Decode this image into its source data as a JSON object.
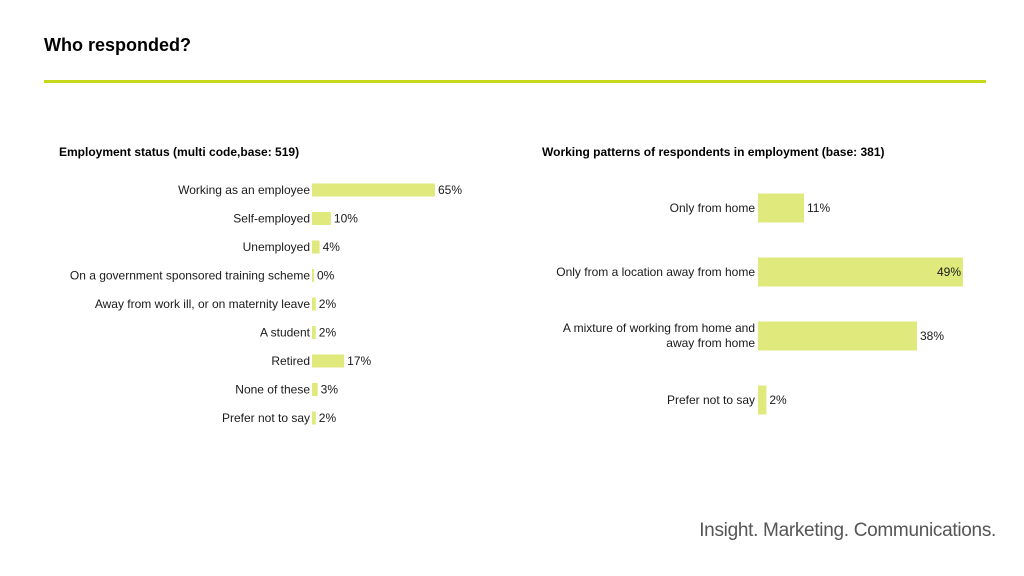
{
  "page": {
    "title": "Who responded?",
    "footer_logo": "Insight. Marketing. Communications."
  },
  "colors": {
    "bar": "#dfe97c",
    "rule": "#c5d81a",
    "text": "#1a1a1a"
  },
  "chart_data": [
    {
      "type": "bar",
      "orientation": "horizontal",
      "title": "Employment status (multi code,base: 519)",
      "categories": [
        "Working as an employee",
        "Self-employed",
        "Unemployed",
        "On a government sponsored training scheme",
        "Away from work ill, or on maternity leave",
        "A student",
        "Retired",
        "None of these",
        "Prefer not to say"
      ],
      "values": [
        65,
        10,
        4,
        0,
        2,
        2,
        17,
        3,
        2
      ],
      "value_labels": [
        "65%",
        "10%",
        "4%",
        "0%",
        "2%",
        "2%",
        "17%",
        "3%",
        "2%"
      ],
      "unit": "%"
    },
    {
      "type": "bar",
      "orientation": "horizontal",
      "title": "Working patterns of respondents in employment (base: 381)",
      "categories": [
        "Only from home",
        "Only from a location away from home",
        "A mixture of working from home and away from home",
        "Prefer not to say"
      ],
      "values": [
        11,
        49,
        38,
        2
      ],
      "value_labels": [
        "11%",
        "49%",
        "38%",
        "2%"
      ],
      "unit": "%"
    }
  ]
}
